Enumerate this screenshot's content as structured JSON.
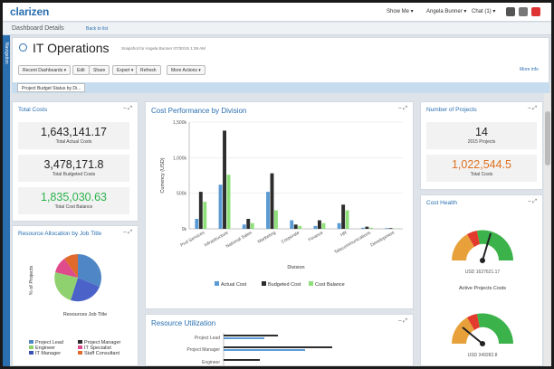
{
  "app": {
    "logo": "clarizen",
    "show_me": "Show Me ▾",
    "user": "Angela Bunner ▾",
    "chat": "Chat (1) ▾",
    "dashboard_details": "Dashboard Details",
    "back_to_list": "Back to list",
    "side_tab": "Navigation"
  },
  "header": {
    "title": "IT Operations",
    "snapshot": "Snapshot for Angela Bunner 07/30/15 1:39 AM",
    "buttons": [
      "Recent Dashboards ▾",
      "Edit",
      "Share",
      "Export ▾",
      "Refresh",
      "More Actions ▾"
    ],
    "more_info": "More info",
    "tab": "Project Budget Status by Di..."
  },
  "total_costs": {
    "title": "Total Costs",
    "stats": [
      {
        "value": "1,643,141.17",
        "label": "Total Actual Costs",
        "color": "#222222"
      },
      {
        "value": "3,478,171.8",
        "label": "Total Budgeted Costs",
        "color": "#222222"
      },
      {
        "value": "1,835,030.63",
        "label": "Total Cost Balance",
        "color": "#2bb24c"
      }
    ]
  },
  "resource_allocation": {
    "title": "Resource Allocation by Job Title",
    "ylabel": "% of Projects",
    "xlabel": "Resources Job Title",
    "legend": [
      {
        "name": "Project Lead",
        "color": "#4f86c6"
      },
      {
        "name": "Project Manager",
        "color": "#2d2d2d"
      },
      {
        "name": "Engineer",
        "color": "#8fd16f"
      },
      {
        "name": "IT Specialist",
        "color": "#e04b8b"
      },
      {
        "name": "IT Manager",
        "color": "#3b4fb5"
      },
      {
        "name": "Staff Consultant",
        "color": "#e06a2c"
      }
    ]
  },
  "cost_performance": {
    "title": "Cost Performance by Division",
    "chart_data": {
      "type": "bar",
      "categories": [
        "Prof Services",
        "Infrastructure",
        "National Sales",
        "Marketing",
        "Corporate",
        "Finance",
        "HR",
        "Telecommunications",
        "Development"
      ],
      "series": [
        {
          "name": "Actual Cost",
          "color": "#5b9bd5",
          "values": [
            140,
            620,
            60,
            520,
            120,
            40,
            80,
            15,
            10
          ]
        },
        {
          "name": "Budgeted Cost",
          "color": "#2d2d2d",
          "values": [
            520,
            1380,
            140,
            780,
            60,
            120,
            340,
            30,
            10
          ]
        },
        {
          "name": "Cost Balance",
          "color": "#8fe07a",
          "values": [
            380,
            760,
            80,
            260,
            40,
            80,
            260,
            15,
            5
          ]
        }
      ],
      "ylabel": "Currency (USD)",
      "xlabel": "Division",
      "ylim": [
        0,
        1500
      ],
      "yticks": [
        "0k",
        "500k",
        "1,000k",
        "1,500k"
      ]
    }
  },
  "resource_utilization": {
    "title": "Resource Utilization",
    "rows": [
      "Project Lead",
      "Project Manager",
      "Engineer"
    ]
  },
  "num_projects": {
    "title": "Number of Projects",
    "stats": [
      {
        "value": "14",
        "label": "2015 Projects",
        "color": "#222222"
      },
      {
        "value": "1,022,544.5",
        "label": "Total Costs",
        "color": "#e07020"
      }
    ]
  },
  "cost_health": {
    "title": "Cost Health",
    "gauges": [
      {
        "value_label": "USD 1627621.17",
        "caption": "Active Projects Costs"
      },
      {
        "value_label": "USD 349282.8",
        "caption": ""
      }
    ]
  },
  "panel_controls": "–  ⤢"
}
